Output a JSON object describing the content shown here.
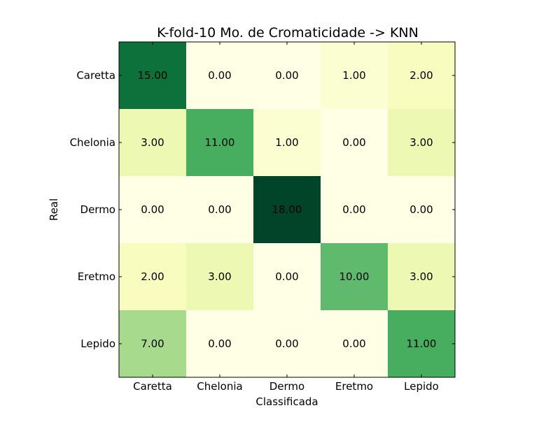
{
  "chart_data": {
    "type": "heatmap",
    "title": "K-fold-10 Mo. de Cromaticidade -> KNN",
    "xlabel": "Classificada",
    "ylabel": "Real",
    "x_categories": [
      "Caretta",
      "Chelonia",
      "Dermo",
      "Eretmo",
      "Lepido"
    ],
    "y_categories": [
      "Caretta",
      "Chelonia",
      "Dermo",
      "Eretmo",
      "Lepido"
    ],
    "values": [
      [
        15,
        0,
        0,
        1,
        2
      ],
      [
        3,
        11,
        1,
        0,
        3
      ],
      [
        0,
        0,
        18,
        0,
        0
      ],
      [
        2,
        3,
        0,
        10,
        3
      ],
      [
        7,
        0,
        0,
        0,
        11
      ]
    ],
    "value_labels": [
      [
        "15.00",
        "0.00",
        "0.00",
        "1.00",
        "2.00"
      ],
      [
        "3.00",
        "11.00",
        "1.00",
        "0.00",
        "3.00"
      ],
      [
        "0.00",
        "0.00",
        "18.00",
        "0.00",
        "0.00"
      ],
      [
        "2.00",
        "3.00",
        "0.00",
        "10.00",
        "3.00"
      ],
      [
        "7.00",
        "0.00",
        "0.00",
        "0.00",
        "11.00"
      ]
    ],
    "value_range": [
      0,
      18
    ],
    "colormap": "YlGn",
    "colormap_stops": [
      "#ffffe5",
      "#f7fcb9",
      "#d9f0a3",
      "#addd8e",
      "#78c679",
      "#41ab5d",
      "#238443",
      "#006837",
      "#004529"
    ],
    "grid": false,
    "legend": "none"
  }
}
